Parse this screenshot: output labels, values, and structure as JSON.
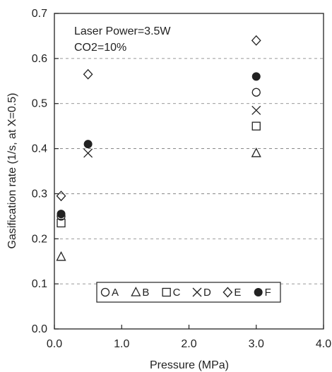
{
  "chart_data": {
    "type": "scatter",
    "xlabel": "Pressure (MPa)",
    "ylabel": "Gasification rate (1/s, at X=0.5)",
    "xlim": [
      0.0,
      4.0
    ],
    "ylim": [
      0.0,
      0.7
    ],
    "x_ticks": [
      "0.0",
      "1.0",
      "2.0",
      "3.0",
      "4.0"
    ],
    "y_ticks": [
      "0.0",
      "0.1",
      "0.2",
      "0.3",
      "0.4",
      "0.5",
      "0.6",
      "0.7"
    ],
    "grid": "horizontal dashed",
    "annotations": [
      "Laser Power=3.5W",
      "CO2=10%"
    ],
    "legend_position": "bottom-center",
    "series": [
      {
        "name": "A",
        "marker": "circle-open",
        "points": [
          [
            0.1,
            0.25
          ],
          [
            3.0,
            0.525
          ]
        ]
      },
      {
        "name": "B",
        "marker": "triangle-open",
        "points": [
          [
            0.1,
            0.16
          ],
          [
            3.0,
            0.39
          ]
        ]
      },
      {
        "name": "C",
        "marker": "square-open",
        "points": [
          [
            0.1,
            0.235
          ],
          [
            3.0,
            0.45
          ]
        ]
      },
      {
        "name": "D",
        "marker": "x",
        "points": [
          [
            0.5,
            0.39
          ],
          [
            3.0,
            0.485
          ]
        ]
      },
      {
        "name": "E",
        "marker": "diamond-open",
        "points": [
          [
            0.1,
            0.295
          ],
          [
            0.5,
            0.565
          ],
          [
            3.0,
            0.64
          ]
        ]
      },
      {
        "name": "F",
        "marker": "circle-filled",
        "points": [
          [
            0.1,
            0.255
          ],
          [
            0.5,
            0.41
          ],
          [
            3.0,
            0.56
          ]
        ]
      }
    ]
  }
}
